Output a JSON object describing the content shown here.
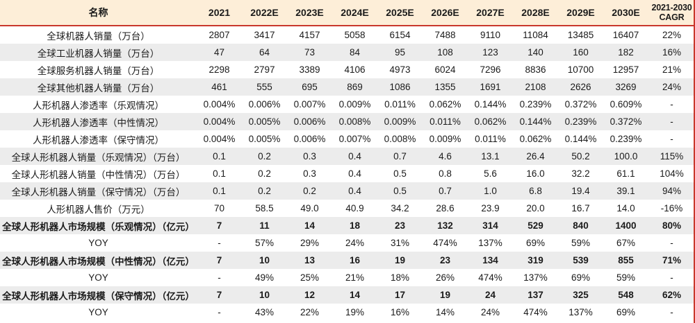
{
  "colors": {
    "header_bg": "#FDEED8",
    "divider_red": "#C9372C",
    "stripe_gray": "#ECECEC",
    "text": "#1A1A1A"
  },
  "chart_data": {
    "type": "table",
    "header": {
      "name": "名称",
      "years": [
        "2021",
        "2022E",
        "2023E",
        "2024E",
        "2025E",
        "2026E",
        "2027E",
        "2028E",
        "2029E",
        "2030E"
      ],
      "cagr_line1": "2021-2030",
      "cagr_line2": "CAGR"
    },
    "rows": [
      {
        "label": "全球机器人销量（万台）",
        "values": [
          "2807",
          "3417",
          "4157",
          "5058",
          "6154",
          "7488",
          "9110",
          "11084",
          "13485",
          "16407"
        ],
        "cagr": "22%",
        "bold": false
      },
      {
        "label": "全球工业机器人销量（万台）",
        "values": [
          "47",
          "64",
          "73",
          "84",
          "95",
          "108",
          "123",
          "140",
          "160",
          "182"
        ],
        "cagr": "16%",
        "bold": false
      },
      {
        "label": "全球服务机器人销量（万台）",
        "values": [
          "2298",
          "2797",
          "3389",
          "4106",
          "4973",
          "6024",
          "7296",
          "8836",
          "10700",
          "12957"
        ],
        "cagr": "21%",
        "bold": false
      },
      {
        "label": "全球其他机器人销量（万台）",
        "values": [
          "461",
          "555",
          "695",
          "869",
          "1086",
          "1355",
          "1691",
          "2108",
          "2626",
          "3269"
        ],
        "cagr": "24%",
        "bold": false
      },
      {
        "label": "人形机器人渗透率（乐观情况）",
        "values": [
          "0.004%",
          "0.006%",
          "0.007%",
          "0.009%",
          "0.011%",
          "0.062%",
          "0.144%",
          "0.239%",
          "0.372%",
          "0.609%"
        ],
        "cagr": "-",
        "bold": false
      },
      {
        "label": "人形机器人渗透率（中性情况）",
        "values": [
          "0.004%",
          "0.005%",
          "0.006%",
          "0.008%",
          "0.009%",
          "0.011%",
          "0.062%",
          "0.144%",
          "0.239%",
          "0.372%"
        ],
        "cagr": "-",
        "bold": false
      },
      {
        "label": "人形机器人渗透率（保守情况）",
        "values": [
          "0.004%",
          "0.005%",
          "0.006%",
          "0.007%",
          "0.008%",
          "0.009%",
          "0.011%",
          "0.062%",
          "0.144%",
          "0.239%"
        ],
        "cagr": "-",
        "bold": false
      },
      {
        "label": "全球人形机器人销量（乐观情况）（万台）",
        "values": [
          "0.1",
          "0.2",
          "0.3",
          "0.4",
          "0.7",
          "4.6",
          "13.1",
          "26.4",
          "50.2",
          "100.0"
        ],
        "cagr": "115%",
        "bold": false
      },
      {
        "label": "全球人形机器人销量（中性情况）（万台）",
        "values": [
          "0.1",
          "0.2",
          "0.3",
          "0.4",
          "0.5",
          "0.8",
          "5.6",
          "16.0",
          "32.2",
          "61.1"
        ],
        "cagr": "104%",
        "bold": false
      },
      {
        "label": "全球人形机器人销量（保守情况）（万台）",
        "values": [
          "0.1",
          "0.2",
          "0.2",
          "0.4",
          "0.5",
          "0.7",
          "1.0",
          "6.8",
          "19.4",
          "39.1"
        ],
        "cagr": "94%",
        "bold": false
      },
      {
        "label": "人形机器人售价（万元）",
        "values": [
          "70",
          "58.5",
          "49.0",
          "40.9",
          "34.2",
          "28.6",
          "23.9",
          "20.0",
          "16.7",
          "14.0"
        ],
        "cagr": "-16%",
        "bold": false
      },
      {
        "label": "全球人形机器人市场规模（乐观情况）（亿元）",
        "values": [
          "7",
          "11",
          "14",
          "18",
          "23",
          "132",
          "314",
          "529",
          "840",
          "1400"
        ],
        "cagr": "80%",
        "bold": true
      },
      {
        "label": "YOY",
        "values": [
          "-",
          "57%",
          "29%",
          "24%",
          "31%",
          "474%",
          "137%",
          "69%",
          "59%",
          "67%"
        ],
        "cagr": "-",
        "bold": false
      },
      {
        "label": "全球人形机器人市场规模（中性情况）（亿元）",
        "values": [
          "7",
          "10",
          "13",
          "16",
          "19",
          "23",
          "134",
          "319",
          "539",
          "855"
        ],
        "cagr": "71%",
        "bold": true
      },
      {
        "label": "YOY",
        "values": [
          "-",
          "49%",
          "25%",
          "21%",
          "18%",
          "26%",
          "474%",
          "137%",
          "69%",
          "59%"
        ],
        "cagr": "-",
        "bold": false
      },
      {
        "label": "全球人形机器人市场规模（保守情况）（亿元）",
        "values": [
          "7",
          "10",
          "12",
          "14",
          "17",
          "19",
          "24",
          "137",
          "325",
          "548"
        ],
        "cagr": "62%",
        "bold": true
      },
      {
        "label": "YOY",
        "values": [
          "-",
          "43%",
          "22%",
          "19%",
          "16%",
          "14%",
          "24%",
          "474%",
          "137%",
          "69%"
        ],
        "cagr": "-",
        "bold": false
      }
    ]
  }
}
